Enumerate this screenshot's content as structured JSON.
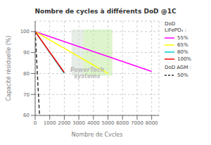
{
  "chart_data": {
    "type": "line",
    "title": "Nombre de cycles à différents DoD @1C",
    "x_label": "Nombre de Cycles",
    "y_label": "Capacité résiduelle (%)",
    "xlim": [
      0,
      8500
    ],
    "ylim": [
      60,
      105
    ],
    "xticks": [
      0,
      1000,
      2000,
      3000,
      4000,
      5000,
      6000,
      7000,
      8000
    ],
    "yticks": [
      60,
      70,
      80,
      90,
      100
    ],
    "grid": true,
    "legend": "upper right",
    "series": [
      {
        "name": "55%",
        "group": "DoD\nLiFePO₄ :",
        "color": "#ff00ff",
        "line_style": "solid",
        "x": [
          0,
          8000
        ],
        "values": [
          100,
          81
        ]
      },
      {
        "name": "65%",
        "group": "DoD\nLiFePO₄ :",
        "color": "#ffff00",
        "line_style": "solid",
        "x": [
          0,
          5000
        ],
        "values": [
          100,
          80
        ]
      },
      {
        "name": "80%",
        "group": "DoD\nLiFePO₄ :",
        "color": "#00cccc",
        "line_style": "solid",
        "x": [
          0,
          2000
        ],
        "values": [
          100,
          80
        ]
      },
      {
        "name": "100%",
        "group": "DoD\nLiFePO₄ :",
        "color": "#ff0000",
        "line_style": "solid",
        "x": [
          0,
          2000
        ],
        "values": [
          100,
          80.5
        ]
      },
      {
        "name": "50%",
        "group": "DoD AGM :",
        "color": "#333333",
        "line_style": "dashed",
        "x": [
          0,
          300
        ],
        "values": [
          100,
          60
        ]
      }
    ],
    "regions": [
      {
        "x": [
          2500,
          5300
        ],
        "y": [
          79,
          101
        ],
        "color": "#ffe4b5"
      },
      {
        "x": [
          2500,
          3300
        ],
        "y": [
          79,
          101
        ],
        "color": "#add8e6"
      },
      {
        "x": [
          3300,
          5300
        ],
        "y": [
          79,
          101
        ],
        "color": "#90ee90"
      }
    ],
    "annotations": [
      "PowerTech\nsystems"
    ]
  }
}
